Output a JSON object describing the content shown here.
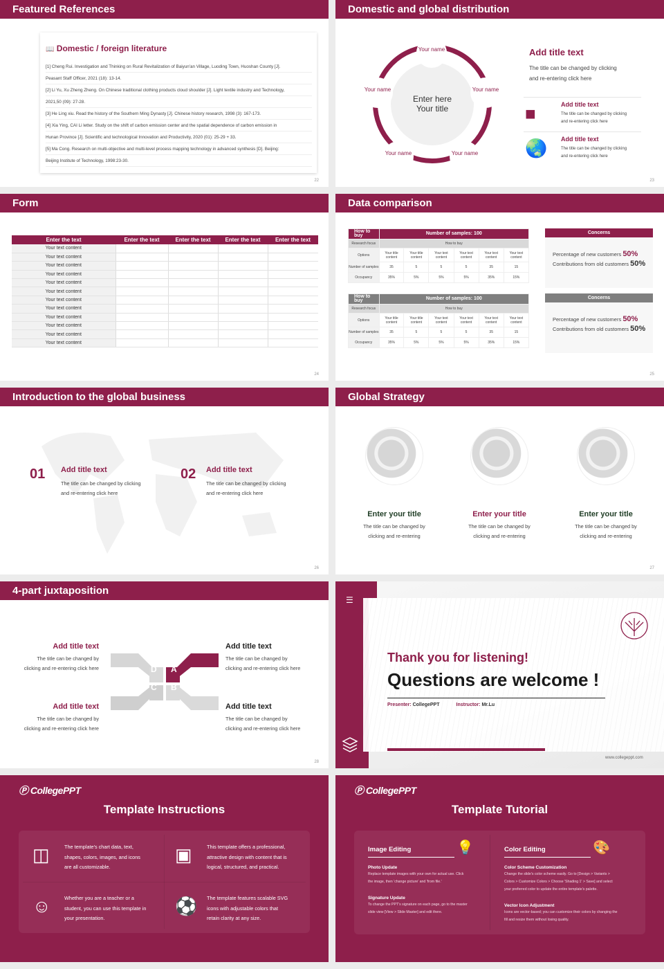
{
  "colors": {
    "accent": "#8e1f4b",
    "gray": "#7f7f7f",
    "green_title": "#1f3d25"
  },
  "s1": {
    "title": "Featured References",
    "card_title": "Domestic / foreign literature",
    "icon": "book-icon",
    "page": "22",
    "refs": [
      "[1] Cheng Rui. Investigation and Thinking on Rural Revitalization of Baiyun'an Village, Luoding Town, Huoshan County [J].",
      "Peasant Staff Officer, 2021 (18): 13-14.",
      "[2] Li Yu, Xu Zheng Zheng. On Chinese traditional clothing products cloud shoulder [J]. Light textile industry and Technology,",
      "2021,50 (09): 27-28.",
      "[3] He Ling xiu. Read the history of the Southern Ming Dynasty [J]. Chinese history research, 1998 (3): 167-173.",
      "[4] Xia Ying, CAI Li letter. Study on the shift of carbon emission center and the spatial dependence of carbon emission in",
      "Hunan Province [J]. Scientific and technological Innovation and Productivity, 2020 (01): 25-29 + 33.",
      "[5] Ma Cong. Research on multi-objective and multi-level process mapping technology in advanced synthesis [D]. Beijing:",
      "Beijing Institute of Technology, 1998:23-30."
    ]
  },
  "s2": {
    "title": "Domestic and global distribution",
    "page": "23",
    "center": [
      "Enter here",
      "Your title"
    ],
    "node": "Your name",
    "main_title": "Add title text",
    "main_desc": [
      "The title can be changed by clicking",
      "and re-entering click here"
    ],
    "items": [
      {
        "icon": "china-map-icon",
        "title": "Add title text",
        "desc": [
          "The title can be changed by clicking",
          "and re-entering click here"
        ]
      },
      {
        "icon": "globe-icon",
        "title": "Add title text",
        "desc": [
          "The title can be changed by clicking",
          "and re-entering click here"
        ]
      }
    ]
  },
  "s3": {
    "title": "Form",
    "page": "24",
    "headers": [
      "Enter the text",
      "Enter the text",
      "Enter the text",
      "Enter the text",
      "Enter the text"
    ],
    "row_label": "Your text content",
    "row_count": 12
  },
  "s4": {
    "title": "Data comparison",
    "page": "25",
    "table": {
      "h1": "How to buy",
      "h2": "Number of samples: 100",
      "rf": "Research focus",
      "rf_val": "How to buy",
      "options": "Options",
      "opt_vals": [
        "Your title content",
        "Your title content",
        "Your text content",
        "Your text content",
        "Your text content",
        "Your text content"
      ],
      "samples": "Number of samples",
      "sample_vals": [
        "35",
        "5",
        "5",
        "5",
        "35",
        "15"
      ],
      "occ": "Occupancy",
      "occ_vals": [
        "35%",
        "5%",
        "5%",
        "5%",
        "35%",
        "15%"
      ]
    },
    "concerns": {
      "title": "Concerns",
      "new": "Percentage of new customers",
      "new_val": "50%",
      "old": "Contributions from old customers",
      "old_val": "50%"
    }
  },
  "s5": {
    "title": "Introduction to the global business",
    "page": "26",
    "items": [
      {
        "num": "01",
        "title": "Add title text",
        "desc": [
          "The title can be changed by clicking",
          "and re-entering click here"
        ]
      },
      {
        "num": "02",
        "title": "Add title text",
        "desc": [
          "The title can be changed by clicking",
          "and re-entering click here"
        ]
      }
    ]
  },
  "s6": {
    "title": "Global Strategy",
    "page": "27",
    "items": [
      {
        "title": "Enter your title",
        "desc": [
          "The title can be changed by",
          "clicking and re-entering"
        ]
      },
      {
        "title": "Enter your title",
        "desc": [
          "The title can be changed by",
          "clicking and re-entering"
        ]
      },
      {
        "title": "Enter your title",
        "desc": [
          "The title can be changed by",
          "clicking and re-entering"
        ]
      }
    ]
  },
  "s7": {
    "title": "4-part juxtaposition",
    "page": "28",
    "letters": [
      "D",
      "A",
      "C",
      "B"
    ],
    "items": [
      {
        "title": "Add title text",
        "desc": [
          "The title can be changed by",
          "clicking and re-entering click here"
        ]
      },
      {
        "title": "Add title text",
        "desc": [
          "The title can be changed by",
          "clicking and re-entering click here"
        ]
      },
      {
        "title": "Add title text",
        "desc": [
          "The title can be changed by",
          "clicking and re-entering click here"
        ]
      },
      {
        "title": "Add title text",
        "desc": [
          "The title can be changed by",
          "clicking and re-entering click here"
        ]
      }
    ]
  },
  "s8": {
    "thanks": "Thank you for listening!",
    "questions": "Questions are welcome !",
    "presenter_label": "Presenter:",
    "presenter": "CollegePPT",
    "instructor_label": "Instructor:",
    "instructor": "Mr.Lu",
    "website": "www.collegeppt.com"
  },
  "s9": {
    "logo": "CollegePPT",
    "title": "Template Instructions",
    "cells": [
      {
        "icon": "slides-icon",
        "text": [
          "The template's chart data, text,",
          "shapes, colors, images, and icons",
          "are all customizable."
        ]
      },
      {
        "icon": "layers-box-icon",
        "text": [
          "This template offers a professional,",
          "attractive design with content that is",
          "logical, structured, and practical."
        ]
      },
      {
        "icon": "teacher-icon",
        "text": [
          "Whether you are a teacher or a",
          "student, you can use this template in",
          "your presentation."
        ]
      },
      {
        "icon": "basketball-icon",
        "text": [
          "The template features scalable SVG",
          "icons with adjustable colors that",
          "retain clarity at any size."
        ]
      }
    ]
  },
  "s10": {
    "logo": "CollegePPT",
    "title": "Template Tutorial",
    "cols": [
      {
        "icon": "lightbulb-icon",
        "title": "Image Editing",
        "sections": [
          {
            "h": "Photo Update",
            "t": [
              "Replace template images with your own for actual use. Click",
              "the image, then 'change picture' and 'from file.'"
            ]
          },
          {
            "h": "Signature Update",
            "t": [
              "To change the PPT's signature on each page, go to the master",
              "slide view [View > Slide Master] and edit there."
            ]
          }
        ]
      },
      {
        "icon": "palette-icon",
        "title": "Color Editing",
        "sections": [
          {
            "h": "Color Scheme Customization",
            "t": [
              "Change the slide's color scheme easily. Go to [Design > Variants >",
              "Colors > Customize Colors > Choose 'Shading 1' > Save] and select",
              "your preferred color to update the entire template's palette."
            ]
          },
          {
            "h": "Vector Icon Adjustment",
            "t": [
              "Icons are vector-based; you can customize their colors by changing the",
              "fill and resize them without losing quality."
            ]
          }
        ]
      }
    ]
  }
}
